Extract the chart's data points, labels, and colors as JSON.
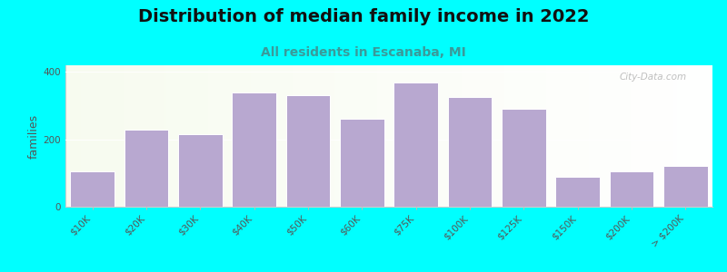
{
  "title": "Distribution of median family income in 2022",
  "subtitle": "All residents in Escanaba, MI",
  "ylabel": "families",
  "categories": [
    "$10K",
    "$20K",
    "$30K",
    "$40K",
    "$50K",
    "$60K",
    "$75K",
    "$100K",
    "$125K",
    "$150K",
    "$200K",
    "> $200K"
  ],
  "bar_heights": [
    105,
    230,
    215,
    340,
    330,
    260,
    370,
    325,
    290,
    90,
    105,
    120
  ],
  "bar_color": "#b8a8d0",
  "bg_color": "#00ffff",
  "plot_bg_color": "#f0f8ee",
  "title_color": "#111111",
  "subtitle_color": "#3a9a9a",
  "watermark": "City-Data.com",
  "ylim": [
    0,
    420
  ],
  "yticks": [
    0,
    200,
    400
  ],
  "title_fontsize": 14,
  "subtitle_fontsize": 10,
  "tick_fontsize": 7.5,
  "ylabel_fontsize": 9
}
